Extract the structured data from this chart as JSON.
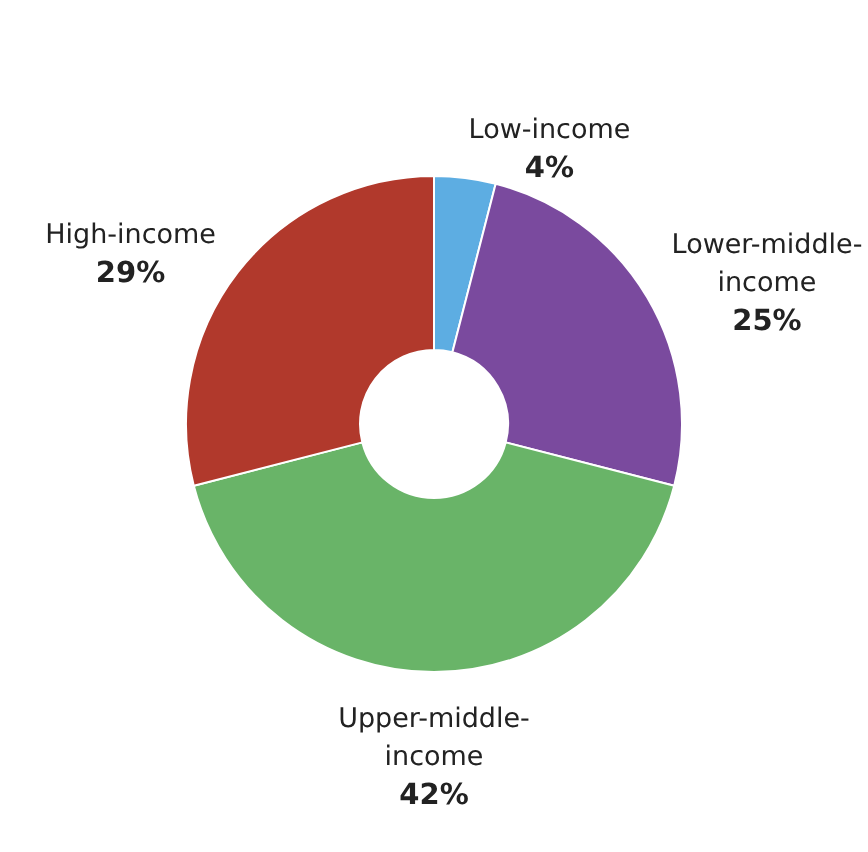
{
  "chart_data": {
    "type": "donut",
    "categories": [
      "Low-income",
      "Lower-middle-income",
      "Upper-middle-income",
      "High-income"
    ],
    "values": [
      4,
      25,
      42,
      29
    ],
    "value_labels": [
      "4%",
      "25%",
      "42%",
      "29%"
    ],
    "colors": [
      "#5dade2",
      "#7a4a9e",
      "#69b468",
      "#b1392c"
    ],
    "legend": false
  }
}
